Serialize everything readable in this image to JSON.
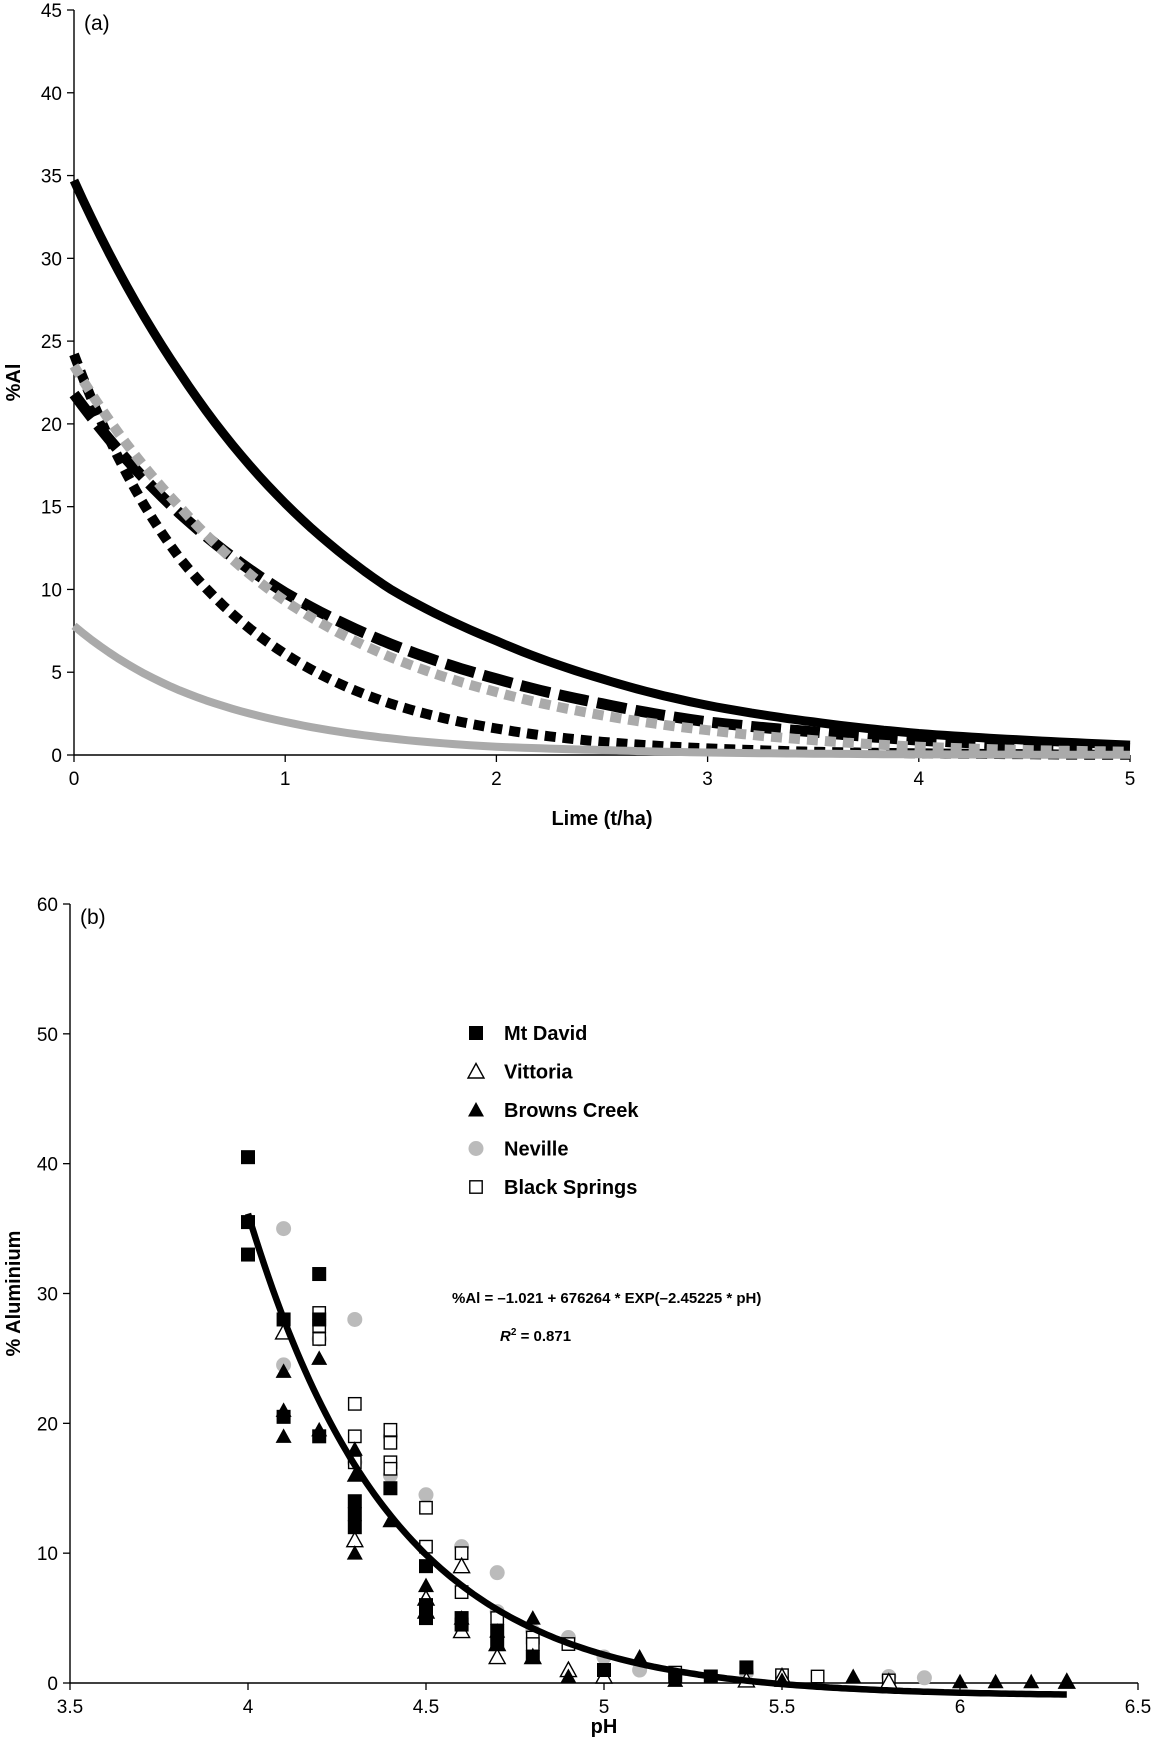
{
  "chart_data": [
    {
      "panel_label": "(a)",
      "type": "line",
      "xlabel": "Lime (t/ha)",
      "ylabel": "%Al",
      "xlim": [
        0,
        5
      ],
      "ylim": [
        0,
        45
      ],
      "xticks": [
        0,
        1,
        2,
        3,
        4,
        5
      ],
      "yticks": [
        0,
        5,
        10,
        15,
        20,
        25,
        30,
        35,
        40,
        45
      ],
      "grid": false,
      "legend": "none",
      "x": [
        0,
        0.5,
        1,
        1.5,
        2,
        2.5,
        3,
        3.5,
        4,
        4.5,
        5
      ],
      "series": [
        {
          "style": "solid",
          "color": "#000000",
          "values": [
            34.7,
            23.1,
            15.2,
            10.0,
            6.9,
            4.6,
            3.0,
            2.0,
            1.3,
            0.9,
            0.6
          ]
        },
        {
          "style": "long-dash",
          "color": "#000000",
          "values": [
            21.8,
            14.6,
            9.8,
            6.7,
            4.6,
            3.1,
            2.0,
            1.4,
            0.9,
            0.6,
            0.4
          ]
        },
        {
          "style": "dotted",
          "color": "#000000",
          "values": [
            24.2,
            11.9,
            6.1,
            3.1,
            1.6,
            0.8,
            0.4,
            0.2,
            0.1,
            0.05,
            0.0
          ]
        },
        {
          "style": "dotted",
          "color": "#aaaaaa",
          "values": [
            23.5,
            15.0,
            9.3,
            5.9,
            3.8,
            2.4,
            1.5,
            0.9,
            0.5,
            0.3,
            0.2
          ]
        },
        {
          "style": "solid",
          "color": "#aaaaaa",
          "values": [
            7.8,
            3.9,
            2.0,
            1.0,
            0.5,
            0.3,
            0.15,
            0.08,
            0.04,
            0.02,
            0.0
          ]
        }
      ]
    },
    {
      "panel_label": "(b)",
      "type": "scatter",
      "xlabel": "pH",
      "ylabel": "% Aluminium",
      "xlim": [
        3.5,
        6.5
      ],
      "ylim": [
        0,
        60
      ],
      "xticks": [
        3.5,
        4,
        4.5,
        5,
        5.5,
        6,
        6.5
      ],
      "xtick_labels": [
        "3.5",
        "4",
        "4.5",
        "5",
        "5.5",
        "6",
        "6.5"
      ],
      "yticks": [
        0,
        10,
        20,
        30,
        40,
        50,
        60
      ],
      "grid": false,
      "legend": "upper-middle",
      "series": [
        {
          "name": "Mt David",
          "marker": "square-filled",
          "color": "#000000",
          "points": [
            [
              4.0,
              40.5
            ],
            [
              4.0,
              35.5
            ],
            [
              4.0,
              33.0
            ],
            [
              4.1,
              28.0
            ],
            [
              4.1,
              20.5
            ],
            [
              4.2,
              31.5
            ],
            [
              4.2,
              28.0
            ],
            [
              4.2,
              19.0
            ],
            [
              4.3,
              14.0
            ],
            [
              4.3,
              13.0
            ],
            [
              4.3,
              12.0
            ],
            [
              4.4,
              15.0
            ],
            [
              4.5,
              9.0
            ],
            [
              4.5,
              6.0
            ],
            [
              4.5,
              5.0
            ],
            [
              4.6,
              5.0
            ],
            [
              4.6,
              4.5
            ],
            [
              4.7,
              4.0
            ],
            [
              4.7,
              3.0
            ],
            [
              4.8,
              2.0
            ],
            [
              5.0,
              1.0
            ],
            [
              5.2,
              0.5
            ],
            [
              5.3,
              0.5
            ],
            [
              5.4,
              1.2
            ]
          ]
        },
        {
          "name": "Vittoria",
          "marker": "triangle-open",
          "color": "#000000",
          "points": [
            [
              4.1,
              27.0
            ],
            [
              4.3,
              11.0
            ],
            [
              4.5,
              6.5
            ],
            [
              4.5,
              5.5
            ],
            [
              4.6,
              9.0
            ],
            [
              4.6,
              4.0
            ],
            [
              4.7,
              3.0
            ],
            [
              4.7,
              2.0
            ],
            [
              4.8,
              2.0
            ],
            [
              4.9,
              1.0
            ],
            [
              5.0,
              0.5
            ],
            [
              5.4,
              0.2
            ],
            [
              5.5,
              0.5
            ],
            [
              5.8,
              0.1
            ],
            [
              6.3,
              0.1
            ]
          ]
        },
        {
          "name": "Browns Creek",
          "marker": "triangle-filled",
          "color": "#000000",
          "points": [
            [
              4.1,
              24.0
            ],
            [
              4.1,
              21.0
            ],
            [
              4.1,
              19.0
            ],
            [
              4.2,
              25.0
            ],
            [
              4.2,
              19.5
            ],
            [
              4.3,
              18.0
            ],
            [
              4.3,
              16.0
            ],
            [
              4.3,
              10.0
            ],
            [
              4.4,
              12.5
            ],
            [
              4.5,
              7.5
            ],
            [
              4.5,
              5.5
            ],
            [
              4.6,
              5.0
            ],
            [
              4.7,
              4.0
            ],
            [
              4.8,
              5.0
            ],
            [
              4.8,
              2.0
            ],
            [
              4.9,
              0.5
            ],
            [
              5.1,
              2.0
            ],
            [
              5.2,
              0.2
            ],
            [
              5.5,
              0.2
            ],
            [
              5.7,
              0.5
            ],
            [
              6.0,
              0.1
            ],
            [
              6.1,
              0.1
            ],
            [
              6.2,
              0.1
            ],
            [
              6.3,
              0.1
            ]
          ]
        },
        {
          "name": "Neville",
          "marker": "circle-filled",
          "color": "#bbbbbb",
          "points": [
            [
              4.1,
              35.0
            ],
            [
              4.1,
              24.5
            ],
            [
              4.2,
              26.5
            ],
            [
              4.3,
              28.0
            ],
            [
              4.3,
              17.0
            ],
            [
              4.4,
              19.0
            ],
            [
              4.4,
              16.0
            ],
            [
              4.5,
              14.5
            ],
            [
              4.6,
              10.5
            ],
            [
              4.7,
              8.5
            ],
            [
              4.7,
              5.5
            ],
            [
              4.8,
              4.0
            ],
            [
              4.9,
              3.5
            ],
            [
              5.0,
              2.0
            ],
            [
              5.1,
              1.0
            ],
            [
              5.4,
              0.8
            ],
            [
              5.8,
              0.5
            ],
            [
              5.9,
              0.4
            ]
          ]
        },
        {
          "name": "Black Springs",
          "marker": "square-open",
          "color": "#000000",
          "points": [
            [
              4.2,
              28.5
            ],
            [
              4.2,
              27.5
            ],
            [
              4.2,
              26.5
            ],
            [
              4.3,
              21.5
            ],
            [
              4.3,
              19.0
            ],
            [
              4.3,
              17.0
            ],
            [
              4.4,
              19.5
            ],
            [
              4.4,
              18.5
            ],
            [
              4.4,
              17.0
            ],
            [
              4.4,
              16.5
            ],
            [
              4.5,
              13.5
            ],
            [
              4.5,
              10.5
            ],
            [
              4.6,
              10.0
            ],
            [
              4.6,
              7.0
            ],
            [
              4.7,
              5.0
            ],
            [
              4.8,
              3.5
            ],
            [
              4.8,
              3.0
            ],
            [
              4.9,
              3.0
            ],
            [
              5.2,
              0.8
            ],
            [
              5.5,
              0.6
            ],
            [
              5.6,
              0.5
            ],
            [
              5.8,
              0.2
            ]
          ]
        }
      ],
      "fit": {
        "coefficients": {
          "a": -1.021,
          "b": 676264,
          "c": -2.45225
        },
        "x_from": 4.0,
        "x_to": 6.3,
        "equation": "%Al = –1.021 + 676264 * EXP(–2.45225 * pH)",
        "r2_symbol": "R",
        "r2_exp": "2",
        "r2_value": "= 0.871"
      }
    }
  ]
}
